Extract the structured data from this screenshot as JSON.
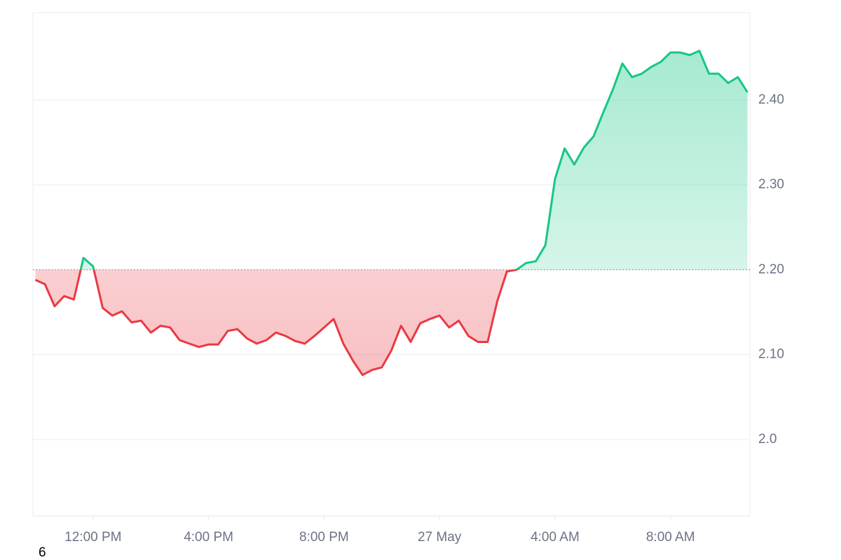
{
  "chart_data": {
    "type": "line",
    "x": [
      "26 May 10:00",
      "26 May 10:20",
      "26 May 10:40",
      "26 May 11:00",
      "26 May 11:20",
      "26 May 11:40",
      "26 May 12:00",
      "26 May 12:20",
      "26 May 12:40",
      "26 May 13:00",
      "26 May 13:20",
      "26 May 13:40",
      "26 May 14:00",
      "26 May 14:20",
      "26 May 14:40",
      "26 May 15:00",
      "26 May 15:20",
      "26 May 15:40",
      "26 May 16:00",
      "26 May 16:20",
      "26 May 16:40",
      "26 May 17:00",
      "26 May 17:20",
      "26 May 17:40",
      "26 May 18:00",
      "26 May 18:20",
      "26 May 18:40",
      "26 May 19:00",
      "26 May 19:20",
      "26 May 19:40",
      "26 May 20:00",
      "26 May 20:20",
      "26 May 20:40",
      "26 May 21:00",
      "26 May 21:20",
      "26 May 21:40",
      "26 May 22:00",
      "26 May 22:20",
      "26 May 22:40",
      "26 May 23:00",
      "26 May 23:20",
      "26 May 23:40",
      "27 May 00:00",
      "27 May 00:20",
      "27 May 00:40",
      "27 May 01:00",
      "27 May 01:20",
      "27 May 01:40",
      "27 May 02:00",
      "27 May 02:20",
      "27 May 02:40",
      "27 May 03:00",
      "27 May 03:20",
      "27 May 03:40",
      "27 May 04:00",
      "27 May 04:20",
      "27 May 04:40",
      "27 May 05:00",
      "27 May 05:20",
      "27 May 05:40",
      "27 May 06:00",
      "27 May 06:20",
      "27 May 06:40",
      "27 May 07:00",
      "27 May 07:20",
      "27 May 07:40",
      "27 May 08:00",
      "27 May 08:20",
      "27 May 08:40",
      "27 May 09:00",
      "27 May 09:20",
      "27 May 09:40",
      "27 May 10:00",
      "27 May 10:20",
      "27 May 10:40"
    ],
    "values": [
      2.188,
      2.183,
      2.157,
      2.169,
      2.165,
      2.214,
      2.204,
      2.155,
      2.146,
      2.151,
      2.138,
      2.14,
      2.126,
      2.134,
      2.132,
      2.117,
      2.113,
      2.109,
      2.112,
      2.112,
      2.128,
      2.13,
      2.119,
      2.113,
      2.117,
      2.126,
      2.122,
      2.116,
      2.113,
      2.122,
      2.132,
      2.142,
      2.113,
      2.093,
      2.076,
      2.082,
      2.085,
      2.105,
      2.134,
      2.115,
      2.137,
      2.142,
      2.146,
      2.132,
      2.14,
      2.122,
      2.115,
      2.115,
      2.163,
      2.198,
      2.2,
      2.208,
      2.21,
      2.229,
      2.307,
      2.343,
      2.324,
      2.344,
      2.357,
      2.385,
      2.412,
      2.443,
      2.427,
      2.431,
      2.439,
      2.445,
      2.456,
      2.456,
      2.453,
      2.458,
      2.431,
      2.431,
      2.42,
      2.427,
      2.409
    ],
    "baseline": 2.2,
    "up_color": "#16c784",
    "down_color": "#ea3943",
    "xlim": [
      "26 May 09:55",
      "27 May 10:45"
    ],
    "xticks": [
      {
        "value": "26 May 12:00",
        "label": "12:00 PM"
      },
      {
        "value": "26 May 16:00",
        "label": "4:00 PM"
      },
      {
        "value": "26 May 20:00",
        "label": "8:00 PM"
      },
      {
        "value": "27 May 00:00",
        "label": "27 May"
      },
      {
        "value": "27 May 04:00",
        "label": "4:00 AM"
      },
      {
        "value": "27 May 08:00",
        "label": "8:00 AM"
      }
    ],
    "ylim": [
      1.91,
      2.503
    ],
    "yticks": [
      {
        "value": 2.0,
        "label": "2.0"
      },
      {
        "value": 2.1,
        "label": "2.10"
      },
      {
        "value": 2.2,
        "label": "2.20"
      },
      {
        "value": 2.3,
        "label": "2.30"
      },
      {
        "value": 2.4,
        "label": "2.40"
      }
    ],
    "grid": true,
    "annotation": "6"
  }
}
